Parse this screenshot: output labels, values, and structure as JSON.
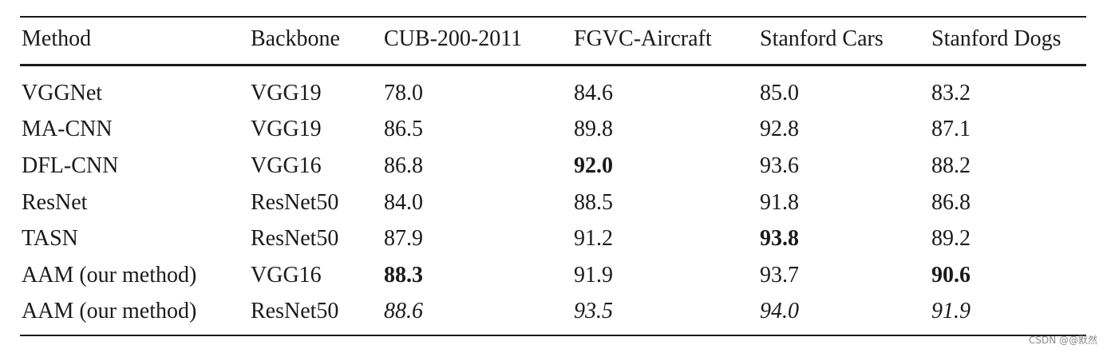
{
  "table": {
    "headers": [
      "Method",
      "Backbone",
      "CUB-200-2011",
      "FGVC-Aircraft",
      "Stanford Cars",
      "Stanford Dogs"
    ],
    "rows": [
      {
        "cells": [
          "VGGNet",
          "VGG19",
          "78.0",
          "84.6",
          "85.0",
          "83.2"
        ],
        "styles": [
          "",
          "",
          "",
          "",
          "",
          ""
        ]
      },
      {
        "cells": [
          "MA-CNN",
          "VGG19",
          "86.5",
          "89.8",
          "92.8",
          "87.1"
        ],
        "styles": [
          "",
          "",
          "",
          "",
          "",
          ""
        ]
      },
      {
        "cells": [
          "DFL-CNN",
          "VGG16",
          "86.8",
          "92.0",
          "93.6",
          "88.2"
        ],
        "styles": [
          "",
          "",
          "",
          "bold",
          "",
          ""
        ]
      },
      {
        "cells": [
          "ResNet",
          "ResNet50",
          "84.0",
          "88.5",
          "91.8",
          "86.8"
        ],
        "styles": [
          "",
          "",
          "",
          "",
          "",
          ""
        ]
      },
      {
        "cells": [
          "TASN",
          "ResNet50",
          "87.9",
          "91.2",
          "93.8",
          "89.2"
        ],
        "styles": [
          "",
          "",
          "",
          "",
          "bold",
          ""
        ]
      },
      {
        "cells": [
          "AAM (our method)",
          "VGG16",
          "88.3",
          "91.9",
          "93.7",
          "90.6"
        ],
        "styles": [
          "",
          "",
          "bold",
          "",
          "",
          "bold"
        ]
      },
      {
        "cells": [
          "AAM (our method)",
          "ResNet50",
          "88.6",
          "93.5",
          "94.0",
          "91.9"
        ],
        "styles": [
          "",
          "",
          "italic",
          "italic",
          "italic",
          "italic"
        ]
      }
    ]
  },
  "watermark": "CSDN @@默然"
}
